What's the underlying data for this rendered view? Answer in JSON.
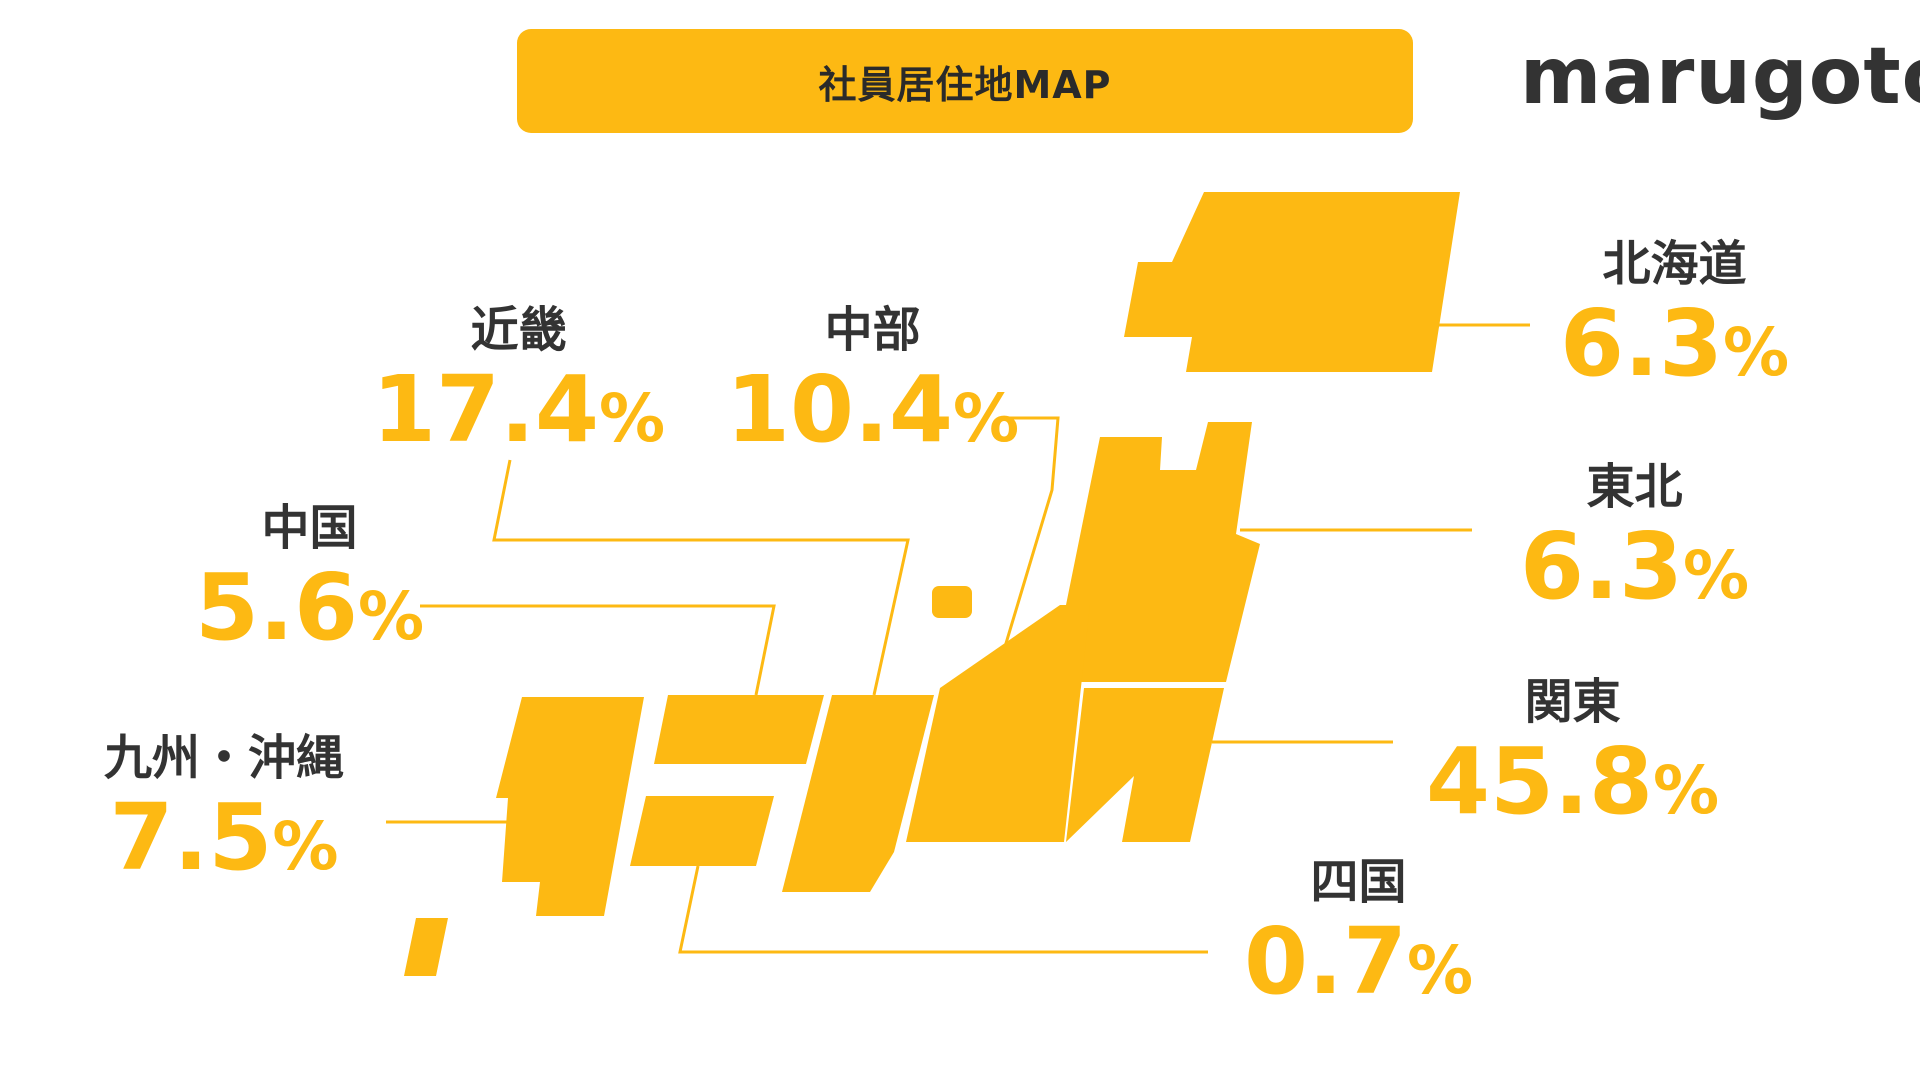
{
  "title": "社員居住地MAP",
  "logo": "marugoto",
  "colors": {
    "accent": "#FDB913",
    "text": "#333333",
    "background": "#FFFFFF"
  },
  "regions": [
    {
      "name": "北海道",
      "value": "6.3",
      "unit": "%"
    },
    {
      "name": "東北",
      "value": "6.3",
      "unit": "%"
    },
    {
      "name": "関東",
      "value": "45.8",
      "unit": "%"
    },
    {
      "name": "四国",
      "value": "0.7",
      "unit": "%"
    },
    {
      "name": "近畿",
      "value": "17.4",
      "unit": "%"
    },
    {
      "name": "中部",
      "value": "10.4",
      "unit": "%"
    },
    {
      "name": "中国",
      "value": "5.6",
      "unit": "%"
    },
    {
      "name": "九州・沖縄",
      "value": "7.5",
      "unit": "%"
    }
  ]
}
